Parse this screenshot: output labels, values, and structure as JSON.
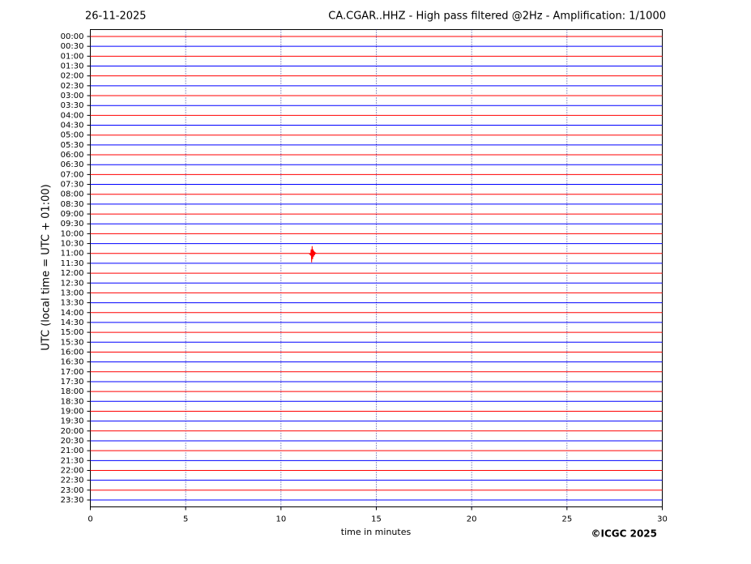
{
  "chart_data": {
    "type": "helicorder",
    "date": "26-11-2025",
    "title": "CA.CGAR..HHZ - High pass filtered @2Hz - Amplification: 1/1000",
    "xlabel": "time in minutes",
    "ylabel": "UTC (local time = UTC + 01:00)",
    "copyright": "©ICGC 2025",
    "categories": [
      "00:00",
      "00:30",
      "01:00",
      "01:30",
      "02:00",
      "02:30",
      "03:00",
      "03:30",
      "04:00",
      "04:30",
      "05:00",
      "05:30",
      "06:00",
      "06:30",
      "07:00",
      "07:30",
      "08:00",
      "08:30",
      "09:00",
      "09:30",
      "10:00",
      "10:30",
      "11:00",
      "11:30",
      "12:00",
      "12:30",
      "13:00",
      "13:30",
      "14:00",
      "14:30",
      "15:00",
      "15:30",
      "16:00",
      "16:30",
      "17:00",
      "17:30",
      "18:00",
      "18:30",
      "19:00",
      "19:30",
      "20:00",
      "20:30",
      "21:00",
      "21:30",
      "22:00",
      "22:30",
      "23:00",
      "23:30"
    ],
    "colors": [
      "#ff0000",
      "#0000ff"
    ],
    "xlim": [
      0,
      30
    ],
    "xticks": [
      0,
      5,
      10,
      15,
      20,
      25,
      30
    ],
    "grid": true,
    "events": [
      {
        "time": "11:00",
        "x": 11.6
      }
    ]
  }
}
